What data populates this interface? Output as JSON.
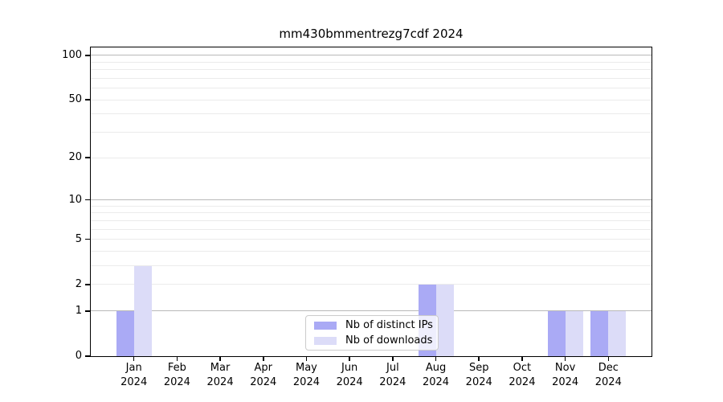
{
  "chart_data": {
    "type": "bar",
    "title": "mm430bmmentrezg7cdf 2024",
    "categories": [
      "Jan",
      "Feb",
      "Mar",
      "Apr",
      "May",
      "Jun",
      "Jul",
      "Aug",
      "Sep",
      "Oct",
      "Nov",
      "Dec"
    ],
    "year_label": "2024",
    "series": [
      {
        "name": "Nb of distinct IPs",
        "color": "#aaaaf5",
        "values": [
          1,
          0,
          0,
          0,
          0,
          0,
          0,
          2,
          0,
          0,
          1,
          1
        ]
      },
      {
        "name": "Nb of downloads",
        "color": "#dcdcf8",
        "values": [
          3,
          0,
          0,
          0,
          0,
          0,
          0,
          2,
          0,
          0,
          1,
          1
        ]
      }
    ],
    "scale": "log1p",
    "ylim": [
      0,
      113
    ],
    "yticks": [
      "0",
      "1",
      "2",
      "5",
      "10",
      "20",
      "50",
      "100"
    ],
    "ytick_values": [
      0,
      1,
      2,
      5,
      10,
      20,
      50,
      100
    ],
    "decade_gridlines": [
      1,
      10,
      100
    ],
    "major_gridlines": [
      2,
      5,
      20,
      50
    ],
    "minor_gridlines": [
      3,
      4,
      6,
      7,
      8,
      9,
      30,
      40,
      60,
      70,
      80,
      90
    ],
    "grid_on": true,
    "legend_position": "lower center-right inside plot",
    "colors": {
      "background": "#ffffff",
      "spine": "#000000",
      "grid_decade": "#b9b9b9",
      "grid_minor": "#ebebeb",
      "legend_border": "#cccccc",
      "text": "#000000"
    }
  }
}
